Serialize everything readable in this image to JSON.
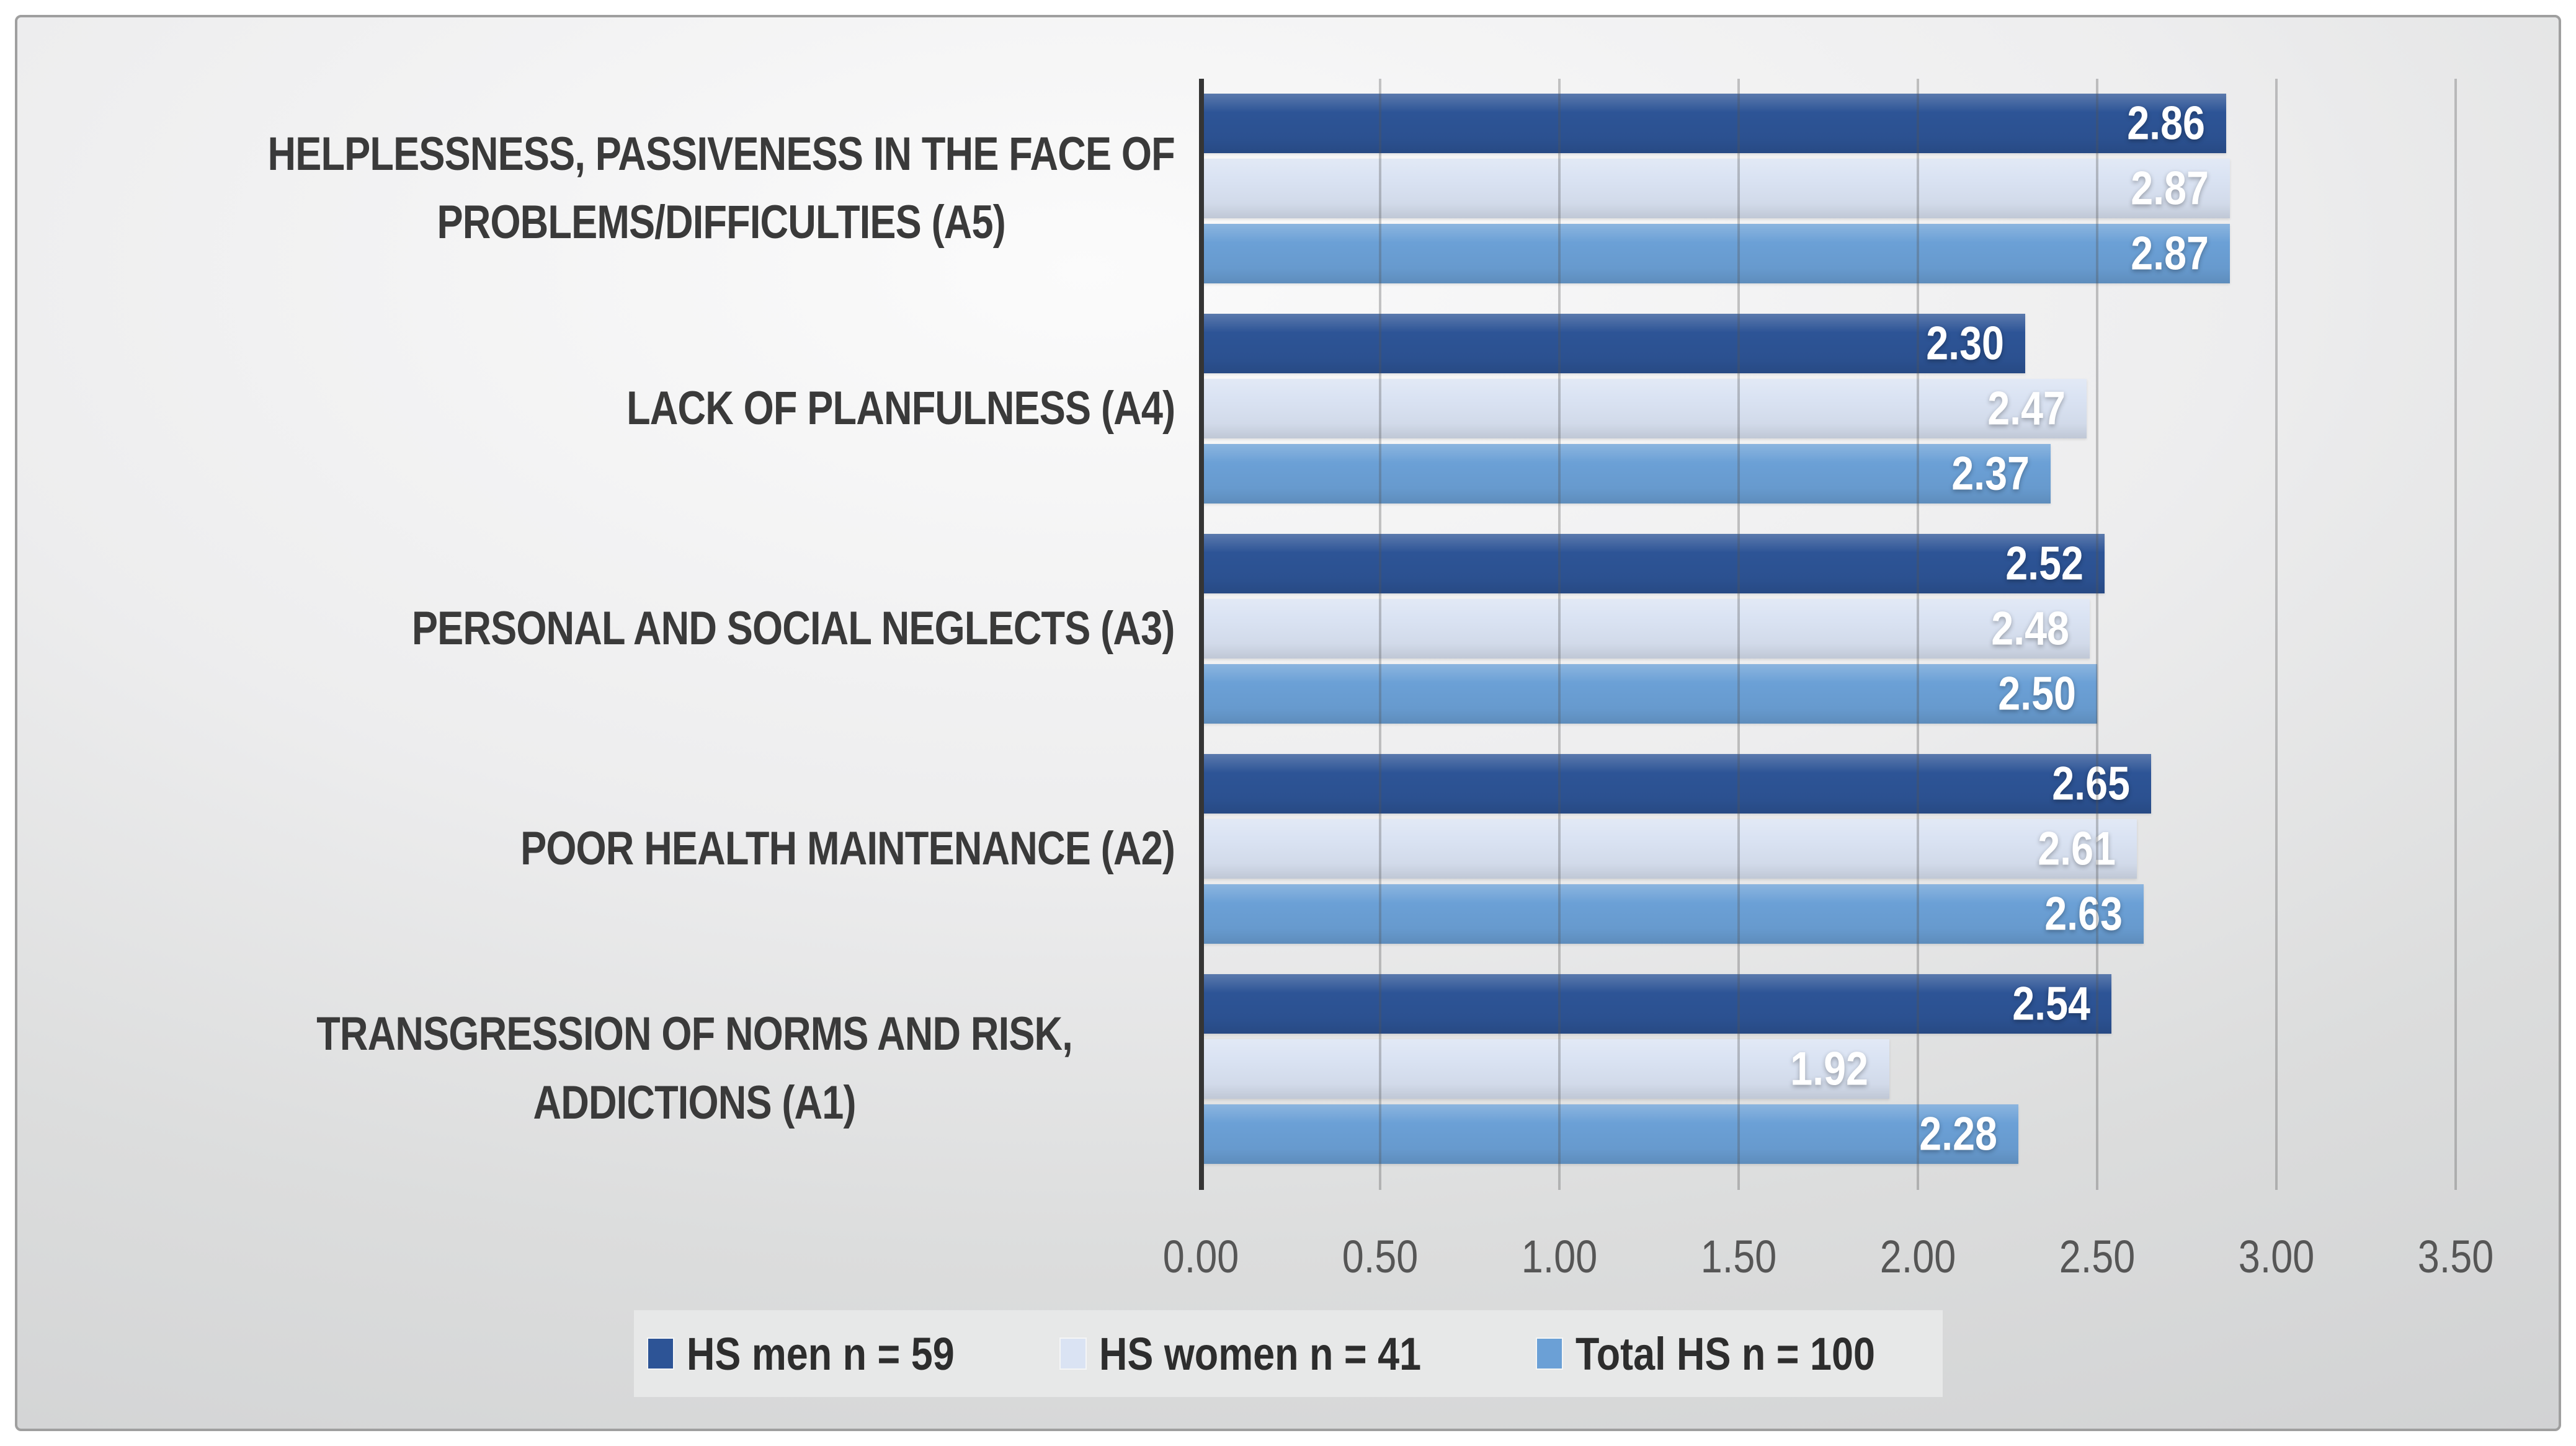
{
  "chart_data": {
    "type": "bar",
    "orientation": "horizontal",
    "title": "",
    "categories": [
      "HELPLESSNESS, PASSIVENESS IN THE FACE OF\nPROBLEMS/DIFFICULTIES (A5)",
      "LACK OF PLANFULNESS (A4)",
      "PERSONAL AND SOCIAL NEGLECTS (A3)",
      "POOR HEALTH MAINTENANCE (A2)",
      "TRANSGRESSION OF NORMS AND RISK, ADDICTIONS (A1)"
    ],
    "series": [
      {
        "name": "HS men n = 59",
        "color": "#2D5496",
        "values": [
          2.86,
          2.3,
          2.52,
          2.65,
          2.54
        ]
      },
      {
        "name": "HS women n = 41",
        "color": "#DAE3F3",
        "values": [
          2.87,
          2.47,
          2.48,
          2.61,
          1.92
        ]
      },
      {
        "name": "Total HS n = 100",
        "color": "#6BA0D6",
        "values": [
          2.87,
          2.37,
          2.5,
          2.63,
          2.28
        ]
      }
    ],
    "x_ticks": [
      "0.00",
      "0.50",
      "1.00",
      "1.50",
      "2.00",
      "2.50",
      "3.00",
      "3.50"
    ],
    "xlim": [
      0,
      3.5
    ],
    "grid_step": 0.5,
    "grid": true,
    "legend_position": "bottom",
    "value_label_decimals": 2,
    "colors": {
      "axis_line": "#353535",
      "gridline_gray": "#ababab",
      "category_text": "#3a3a3a",
      "tick_text": "#565656",
      "legend_text": "#2d2d2d",
      "legend_background": "#e7e8e8",
      "value_text": "#ffffff"
    }
  }
}
